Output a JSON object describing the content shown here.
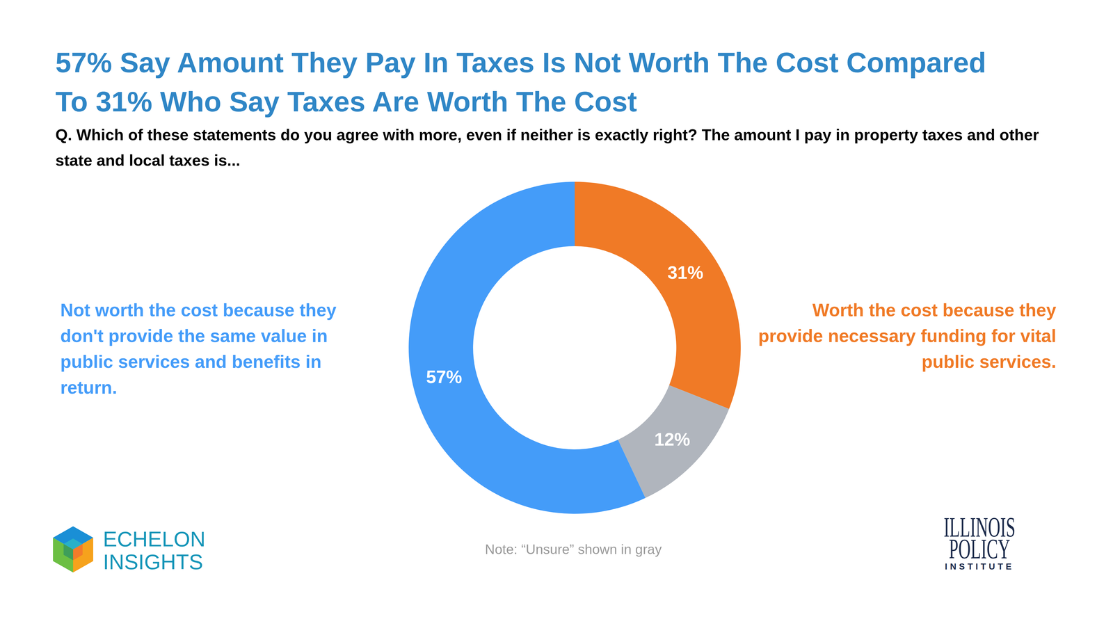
{
  "chart_data": {
    "type": "donut",
    "title": "57% Say Amount They Pay In Taxes Is Not Worth The Cost Compared To 31% Who Say Taxes Are Worth The Cost",
    "subtitle": "Q. Which of these statements do you agree with more, even if neither is exactly right? The amount I pay in property taxes and other state and local taxes is...",
    "categories": [
      "Worth the cost because they provide necessary funding for vital public services.",
      null,
      "Not worth the cost because they don't provide the same value in public services and benefits in return."
    ],
    "values": [
      31,
      12,
      57
    ],
    "value_labels": [
      "31%",
      "12%",
      "57%"
    ],
    "colors": [
      "#f07a26",
      "#b0b5bd",
      "#449cf9"
    ],
    "data_labels": true,
    "annotations": {
      "note": "Note: “Unsure” shown in gray",
      "logo_left": [
        "ECHELON",
        "INSIGHTS"
      ],
      "logo_right": [
        "ILLINOIS",
        "POLICY",
        "INSTITUTE"
      ]
    }
  }
}
